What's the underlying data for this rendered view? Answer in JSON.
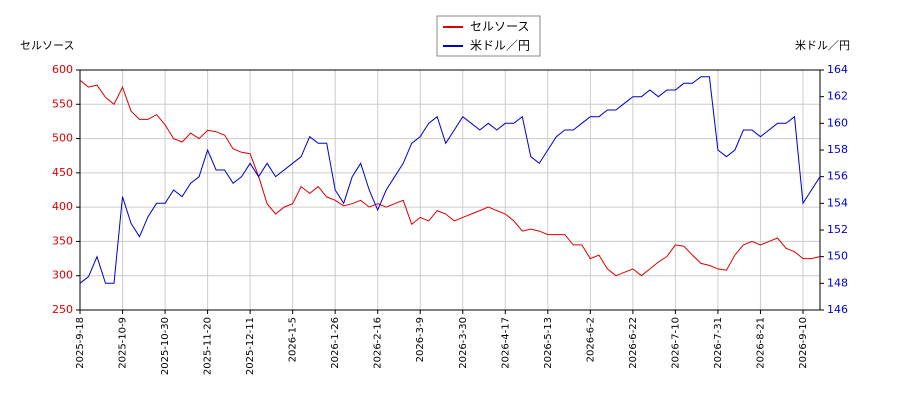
{
  "chart_data": {
    "type": "line",
    "ylabel": "セルソース",
    "y2label": "米ドル／円",
    "categories": [
      "2025-9-18",
      null,
      null,
      null,
      null,
      "2025-10-9",
      null,
      null,
      null,
      null,
      "2025-10-30",
      null,
      null,
      null,
      null,
      "2025-11-20",
      null,
      null,
      null,
      null,
      "2025-12-11",
      null,
      null,
      null,
      null,
      "2026-1-5",
      null,
      null,
      null,
      null,
      "2026-1-26",
      null,
      null,
      null,
      null,
      "2026-2-16",
      null,
      null,
      null,
      null,
      "2026-3-9",
      null,
      null,
      null,
      null,
      "2026-3-30",
      null,
      null,
      null,
      null,
      "2026-4-17",
      null,
      null,
      null,
      null,
      "2026-5-13",
      null,
      null,
      null,
      null,
      "2026-6-2",
      null,
      null,
      null,
      null,
      "2026-6-22",
      null,
      null,
      null,
      null,
      "2026-7-10",
      null,
      null,
      null,
      null,
      "2026-7-31",
      null,
      null,
      null,
      null,
      "2026-8-21",
      null,
      null,
      null,
      null,
      "2026-9-10",
      null,
      null
    ],
    "series": [
      {
        "name": "セルソース",
        "color": "#dd0000",
        "axis": "y",
        "values": [
          585,
          575,
          578,
          560,
          550,
          575,
          540,
          528,
          528,
          535,
          520,
          500,
          495,
          508,
          500,
          512,
          510,
          505,
          485,
          480,
          478,
          445,
          405,
          390,
          400,
          405,
          430,
          420,
          430,
          415,
          410,
          402,
          405,
          410,
          400,
          405,
          400,
          405,
          410,
          375,
          385,
          380,
          395,
          390,
          380,
          385,
          390,
          395,
          400,
          395,
          390,
          380,
          365,
          368,
          365,
          360,
          360,
          360,
          345,
          345,
          325,
          330,
          310,
          300,
          305,
          310,
          300,
          310,
          320,
          328,
          345,
          343,
          330,
          318,
          315,
          310,
          308,
          330,
          345,
          350,
          345,
          350,
          355,
          340,
          335,
          325,
          325,
          328
        ]
      },
      {
        "name": "米ドル／円",
        "color": "#0000cc",
        "axis": "y2",
        "values": [
          148,
          148.5,
          150,
          148,
          148,
          154.5,
          152.5,
          151.5,
          153,
          154,
          154,
          155,
          154.5,
          155.5,
          156,
          158,
          156.5,
          156.5,
          155.5,
          156,
          157,
          156,
          157,
          156,
          156.5,
          157,
          157.5,
          159,
          158.5,
          158.5,
          155,
          154,
          156,
          157,
          155,
          153.5,
          155,
          156,
          157,
          158.5,
          159,
          160,
          160.5,
          158.5,
          159.5,
          160.5,
          160,
          159.5,
          160,
          159.5,
          160,
          160,
          160.5,
          157.5,
          157,
          158,
          159,
          159.5,
          159.5,
          160,
          160.5,
          160.5,
          161,
          161,
          161.5,
          162,
          162,
          162.5,
          162,
          162.5,
          162.5,
          163,
          163,
          163.5,
          163.5,
          158,
          157.5,
          158,
          159.5,
          159.5,
          159,
          159.5,
          160,
          160,
          160.5,
          154,
          155,
          156
        ]
      }
    ],
    "ylim": [
      250,
      600
    ],
    "yticks": [
      250,
      300,
      350,
      400,
      450,
      500,
      550,
      600
    ],
    "y2lim": [
      146,
      164
    ],
    "y2ticks": [
      146,
      148,
      150,
      152,
      154,
      156,
      158,
      160,
      162,
      164
    ],
    "grid": true
  }
}
